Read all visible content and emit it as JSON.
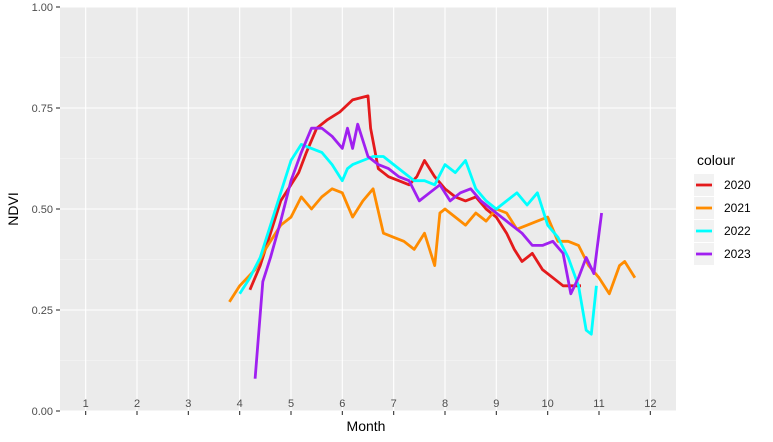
{
  "chart_data": {
    "type": "line",
    "xlabel": "Month",
    "ylabel": "NDVI",
    "ylim": [
      0,
      1
    ],
    "xlim": [
      0.5,
      12.5
    ],
    "y_ticks": [
      "0.00",
      "0.25",
      "0.50",
      "0.75",
      "1.00"
    ],
    "month_labels": [
      "1",
      "2",
      "3",
      "4",
      "5",
      "6",
      "7",
      "8",
      "9",
      "10",
      "11",
      "12"
    ],
    "grid": true,
    "legend": {
      "title": "colour",
      "position": "right"
    },
    "series": [
      {
        "name": "2020",
        "color": "#e41a1c",
        "x": [
          4.2,
          4.4,
          4.6,
          4.8,
          5.0,
          5.15,
          5.3,
          5.5,
          5.7,
          5.95,
          6.2,
          6.5,
          6.55,
          6.7,
          6.9,
          7.1,
          7.3,
          7.45,
          7.6,
          7.8,
          8.0,
          8.2,
          8.4,
          8.6,
          8.8,
          9.0,
          9.2,
          9.35,
          9.5,
          9.7,
          9.9,
          10.1,
          10.3,
          10.5,
          10.65
        ],
        "y": [
          0.3,
          0.36,
          0.44,
          0.52,
          0.56,
          0.59,
          0.64,
          0.7,
          0.72,
          0.74,
          0.77,
          0.78,
          0.7,
          0.6,
          0.58,
          0.57,
          0.56,
          0.58,
          0.62,
          0.58,
          0.55,
          0.53,
          0.52,
          0.53,
          0.5,
          0.48,
          0.44,
          0.4,
          0.37,
          0.39,
          0.35,
          0.33,
          0.31,
          0.31,
          0.31
        ]
      },
      {
        "name": "2021",
        "color": "#ff8c00",
        "x": [
          3.8,
          4.0,
          4.3,
          4.5,
          4.8,
          5.0,
          5.2,
          5.4,
          5.6,
          5.8,
          6.0,
          6.2,
          6.4,
          6.6,
          6.8,
          7.0,
          7.2,
          7.4,
          7.6,
          7.8,
          7.9,
          8.0,
          8.2,
          8.4,
          8.6,
          8.8,
          9.0,
          9.2,
          9.4,
          9.6,
          9.8,
          10.0,
          10.2,
          10.4,
          10.6,
          10.8,
          11.0,
          11.2,
          11.4,
          11.5,
          11.6,
          11.7
        ],
        "y": [
          0.27,
          0.31,
          0.35,
          0.4,
          0.46,
          0.48,
          0.53,
          0.5,
          0.53,
          0.55,
          0.54,
          0.48,
          0.52,
          0.55,
          0.44,
          0.43,
          0.42,
          0.4,
          0.44,
          0.36,
          0.49,
          0.5,
          0.48,
          0.46,
          0.49,
          0.47,
          0.5,
          0.49,
          0.45,
          0.46,
          0.47,
          0.48,
          0.42,
          0.42,
          0.41,
          0.36,
          0.33,
          0.29,
          0.36,
          0.37,
          0.35,
          0.33
        ]
      },
      {
        "name": "2022",
        "color": "#00ffff",
        "x": [
          4.0,
          4.2,
          4.4,
          4.6,
          4.8,
          5.0,
          5.2,
          5.4,
          5.6,
          5.8,
          6.0,
          6.1,
          6.2,
          6.4,
          6.6,
          6.8,
          7.0,
          7.2,
          7.4,
          7.6,
          7.8,
          8.0,
          8.2,
          8.4,
          8.6,
          8.8,
          9.0,
          9.2,
          9.4,
          9.6,
          9.8,
          10.0,
          10.2,
          10.4,
          10.6,
          10.75,
          10.85,
          10.95
        ],
        "y": [
          0.29,
          0.33,
          0.38,
          0.46,
          0.54,
          0.62,
          0.66,
          0.65,
          0.64,
          0.61,
          0.57,
          0.6,
          0.61,
          0.62,
          0.63,
          0.63,
          0.61,
          0.59,
          0.57,
          0.57,
          0.56,
          0.61,
          0.59,
          0.62,
          0.55,
          0.52,
          0.5,
          0.52,
          0.54,
          0.51,
          0.54,
          0.46,
          0.43,
          0.38,
          0.31,
          0.2,
          0.19,
          0.31
        ]
      },
      {
        "name": "2023",
        "color": "#a020f0",
        "x": [
          4.3,
          4.45,
          4.6,
          4.8,
          5.0,
          5.2,
          5.4,
          5.6,
          5.8,
          6.0,
          6.1,
          6.2,
          6.3,
          6.5,
          6.7,
          6.9,
          7.1,
          7.3,
          7.5,
          7.7,
          7.9,
          8.1,
          8.3,
          8.5,
          8.7,
          8.9,
          9.1,
          9.3,
          9.5,
          9.7,
          9.9,
          10.1,
          10.3,
          10.45,
          10.6,
          10.75,
          10.9,
          11.05
        ],
        "y": [
          0.08,
          0.32,
          0.38,
          0.47,
          0.57,
          0.64,
          0.7,
          0.7,
          0.68,
          0.65,
          0.7,
          0.65,
          0.71,
          0.63,
          0.61,
          0.6,
          0.58,
          0.57,
          0.52,
          0.54,
          0.56,
          0.52,
          0.54,
          0.55,
          0.52,
          0.5,
          0.48,
          0.46,
          0.44,
          0.41,
          0.41,
          0.42,
          0.39,
          0.29,
          0.33,
          0.38,
          0.34,
          0.49
        ]
      }
    ]
  }
}
